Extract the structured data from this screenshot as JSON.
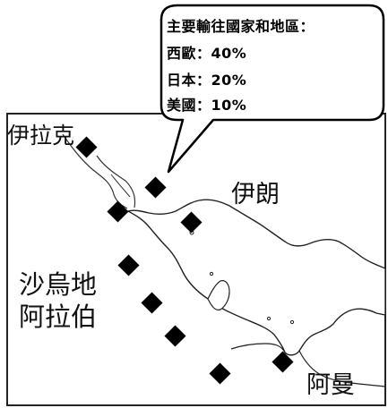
{
  "callout": {
    "title": "主要輸往國家和地區：",
    "destinations": [
      {
        "region": "西歐",
        "separator": "：",
        "share": "40%"
      },
      {
        "region": "日本",
        "separator": "：",
        "share": "20%"
      },
      {
        "region": "美國",
        "separator": "：",
        "share": "10%"
      }
    ]
  },
  "map": {
    "country_labels": {
      "iraq": "伊拉克",
      "iran": "伊朗",
      "saudi_arabia_line1": "沙烏地",
      "saudi_arabia_line2": "阿拉伯",
      "oman": "阿曼"
    },
    "marker_symbol": "diamond",
    "marker_count": 10,
    "colors": {
      "marker": "#000000",
      "coastline": "#222222",
      "sea": "#ffffff",
      "land": "#ffffff"
    }
  }
}
